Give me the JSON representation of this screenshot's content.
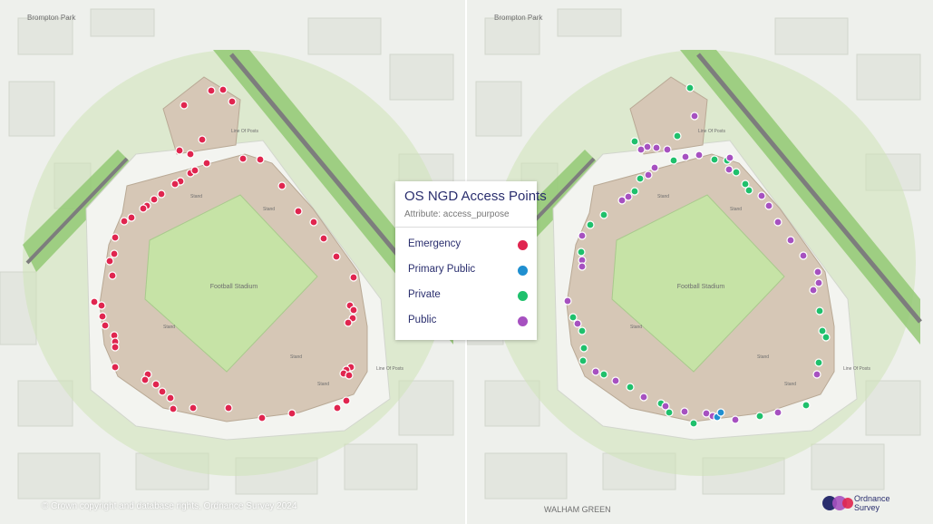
{
  "legend": {
    "title": "OS NGD Access Points",
    "subtitle": "Attribute: access_purpose",
    "items": [
      {
        "label": "Emergency",
        "color": "#e0254f"
      },
      {
        "label": "Primary Public",
        "color": "#1f8fd0"
      },
      {
        "label": "Private",
        "color": "#1fc06c"
      },
      {
        "label": "Public",
        "color": "#a651c0"
      }
    ]
  },
  "map_labels": {
    "street_top": "Brompton Park",
    "stadium": "Football Stadium",
    "stand": "Stand",
    "limit_of_posts": "Line Of Posts",
    "area": "WALHAM GREEN"
  },
  "footer": {
    "copyright": "© Crown copyright and database rights, Ordnance Survey 2024",
    "logo_line1": "Ordnance",
    "logo_line2": "Survey"
  },
  "colors": {
    "background": "#eef0ec",
    "buffer": "#cfe3b8",
    "railway_grass": "#8fc76e",
    "stand": "#d6c7b6",
    "pitch": "#c6e3a6"
  },
  "chart_data": {
    "type": "scatter",
    "series": [
      {
        "name": "Emergency",
        "count": 72
      },
      {
        "name": "Primary Public",
        "count": 2
      },
      {
        "name": "Private",
        "count": 30
      },
      {
        "name": "Public",
        "count": 52
      }
    ]
  }
}
